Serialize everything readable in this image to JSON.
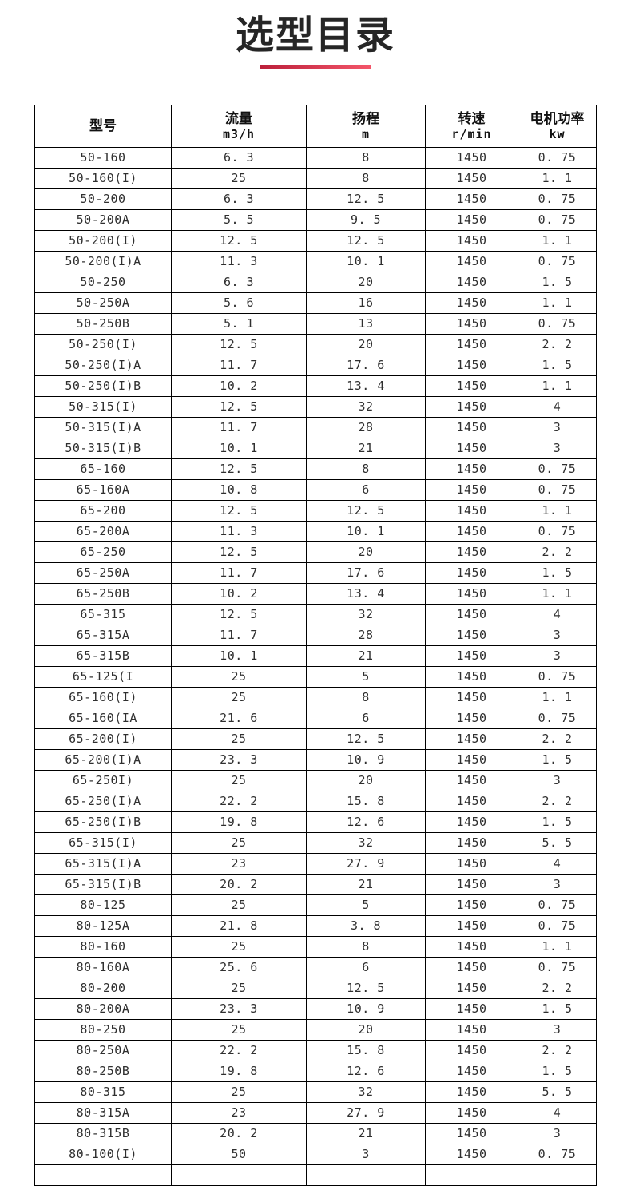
{
  "page": {
    "title": "选型目录"
  },
  "colors": {
    "divider_left": "#bb1f3a",
    "divider_right": "#f4566a",
    "title": "#262626",
    "table_border": "#000000",
    "cell_text": "#2f2f2f"
  },
  "table": {
    "columns": [
      {
        "key": "model",
        "label": "型号",
        "unit": ""
      },
      {
        "key": "flow",
        "label": "流量",
        "unit": "m3/h"
      },
      {
        "key": "head",
        "label": "扬程",
        "unit": "m"
      },
      {
        "key": "speed",
        "label": "转速",
        "unit": "r/min"
      },
      {
        "key": "power",
        "label": "电机功率",
        "unit": "kw"
      }
    ],
    "rows": [
      [
        "50-160",
        "6. 3",
        "8",
        "1450",
        "0. 75"
      ],
      [
        "50-160(I)",
        "25",
        "8",
        "1450",
        "1. 1"
      ],
      [
        "50-200",
        "6. 3",
        "12. 5",
        "1450",
        "0. 75"
      ],
      [
        "50-200A",
        "5. 5",
        "9. 5",
        "1450",
        "0. 75"
      ],
      [
        "50-200(I)",
        "12. 5",
        "12. 5",
        "1450",
        "1. 1"
      ],
      [
        "50-200(I)A",
        "11. 3",
        "10. 1",
        "1450",
        "0. 75"
      ],
      [
        "50-250",
        "6. 3",
        "20",
        "1450",
        "1. 5"
      ],
      [
        "50-250A",
        "5. 6",
        "16",
        "1450",
        "1. 1"
      ],
      [
        "50-250B",
        "5. 1",
        "13",
        "1450",
        "0. 75"
      ],
      [
        "50-250(I)",
        "12. 5",
        "20",
        "1450",
        "2. 2"
      ],
      [
        "50-250(I)A",
        "11. 7",
        "17. 6",
        "1450",
        "1. 5"
      ],
      [
        "50-250(I)B",
        "10. 2",
        "13. 4",
        "1450",
        "1. 1"
      ],
      [
        "50-315(I)",
        "12. 5",
        "32",
        "1450",
        "4"
      ],
      [
        "50-315(I)A",
        "11. 7",
        "28",
        "1450",
        "3"
      ],
      [
        "50-315(I)B",
        "10. 1",
        "21",
        "1450",
        "3"
      ],
      [
        "65-160",
        "12. 5",
        "8",
        "1450",
        "0. 75"
      ],
      [
        "65-160A",
        "10. 8",
        "6",
        "1450",
        "0. 75"
      ],
      [
        "65-200",
        "12. 5",
        "12. 5",
        "1450",
        "1. 1"
      ],
      [
        "65-200A",
        "11. 3",
        "10. 1",
        "1450",
        "0. 75"
      ],
      [
        "65-250",
        "12. 5",
        "20",
        "1450",
        "2. 2"
      ],
      [
        "65-250A",
        "11. 7",
        "17. 6",
        "1450",
        "1. 5"
      ],
      [
        "65-250B",
        "10. 2",
        "13. 4",
        "1450",
        "1. 1"
      ],
      [
        "65-315",
        "12. 5",
        "32",
        "1450",
        "4"
      ],
      [
        "65-315A",
        "11. 7",
        "28",
        "1450",
        "3"
      ],
      [
        "65-315B",
        "10. 1",
        "21",
        "1450",
        "3"
      ],
      [
        "65-125(I",
        "25",
        "5",
        "1450",
        "0. 75"
      ],
      [
        "65-160(I)",
        "25",
        "8",
        "1450",
        "1. 1"
      ],
      [
        "65-160(IA",
        "21. 6",
        "6",
        "1450",
        "0. 75"
      ],
      [
        "65-200(I)",
        "25",
        "12. 5",
        "1450",
        "2. 2"
      ],
      [
        "65-200(I)A",
        "23. 3",
        "10. 9",
        "1450",
        "1. 5"
      ],
      [
        "65-250I)",
        "25",
        "20",
        "1450",
        "3"
      ],
      [
        "65-250(I)A",
        "22. 2",
        "15. 8",
        "1450",
        "2. 2"
      ],
      [
        "65-250(I)B",
        "19. 8",
        "12. 6",
        "1450",
        "1. 5"
      ],
      [
        "65-315(I)",
        "25",
        "32",
        "1450",
        "5. 5"
      ],
      [
        "65-315(I)A",
        "23",
        "27. 9",
        "1450",
        "4"
      ],
      [
        "65-315(I)B",
        "20. 2",
        "21",
        "1450",
        "3"
      ],
      [
        "80-125",
        "25",
        "5",
        "1450",
        "0. 75"
      ],
      [
        "80-125A",
        "21. 8",
        "3. 8",
        "1450",
        "0. 75"
      ],
      [
        "80-160",
        "25",
        "8",
        "1450",
        "1. 1"
      ],
      [
        "80-160A",
        "25. 6",
        "6",
        "1450",
        "0. 75"
      ],
      [
        "80-200",
        "25",
        "12. 5",
        "1450",
        "2. 2"
      ],
      [
        "80-200A",
        "23. 3",
        "10. 9",
        "1450",
        "1. 5"
      ],
      [
        "80-250",
        "25",
        "20",
        "1450",
        "3"
      ],
      [
        "80-250A",
        "22. 2",
        "15. 8",
        "1450",
        "2. 2"
      ],
      [
        "80-250B",
        "19. 8",
        "12. 6",
        "1450",
        "1. 5"
      ],
      [
        "80-315",
        "25",
        "32",
        "1450",
        "5. 5"
      ],
      [
        "80-315A",
        "23",
        "27. 9",
        "1450",
        "4"
      ],
      [
        "80-315B",
        "20. 2",
        "21",
        "1450",
        "3"
      ],
      [
        "80-100(I)",
        "50",
        "3",
        "1450",
        "0. 75"
      ]
    ],
    "partial_row_visible": true
  }
}
